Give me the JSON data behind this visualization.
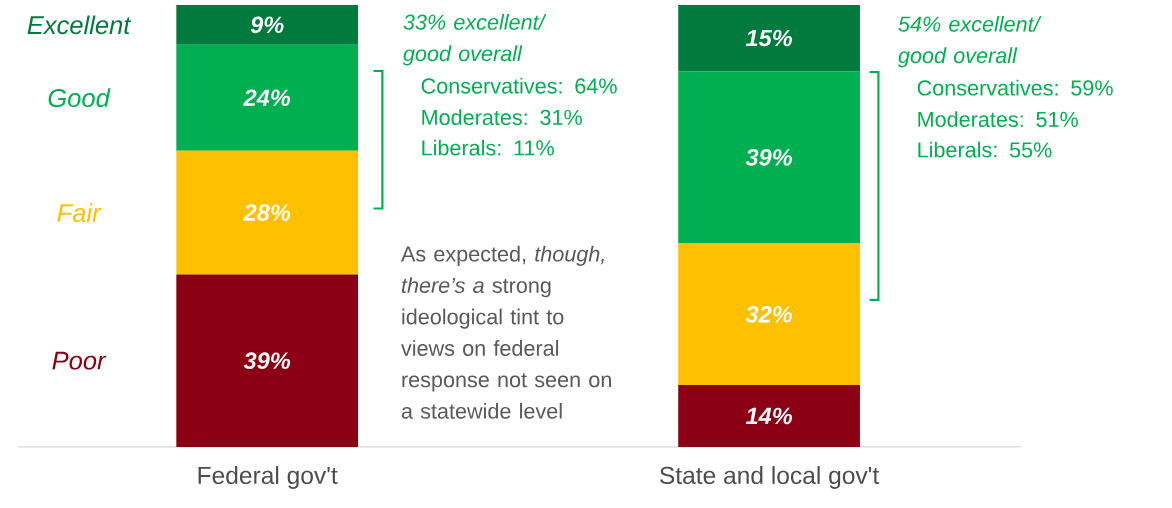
{
  "chart_data": {
    "type": "bar",
    "stacked": true,
    "categories": [
      "Federal gov't",
      "State and local gov't"
    ],
    "ylim": [
      0,
      100
    ],
    "series": [
      {
        "name": "Poor",
        "color": "#8b0012",
        "values": [
          39,
          14
        ],
        "value_labels": [
          "39%",
          "14%"
        ]
      },
      {
        "name": "Fair",
        "color": "#ffc000",
        "values": [
          28,
          32
        ],
        "value_labels": [
          "28%",
          "32%"
        ]
      },
      {
        "name": "Good",
        "color": "#00b050",
        "values": [
          24,
          39
        ],
        "value_labels": [
          "24%",
          "39%"
        ]
      },
      {
        "name": "Excellent",
        "color": "#007a3d",
        "values": [
          9,
          15
        ],
        "value_labels": [
          "9%",
          "15%"
        ]
      }
    ],
    "annotations": [
      "33% excellent/ good overall",
      "Conservatives: 64%",
      "Moderates: 31%",
      "Liberals: 11%",
      "54% excellent/ good overall",
      "Conservatives: 59%",
      "Moderates: 51%",
      "Liberals: 55%",
      "As expected, *though, there’s a* strong ideological tint to views on federal response not seen on a statewide level"
    ]
  }
}
